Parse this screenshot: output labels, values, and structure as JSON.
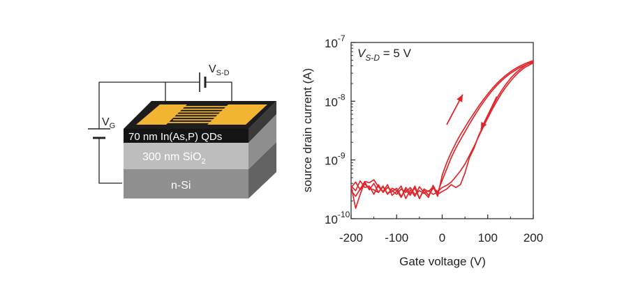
{
  "device": {
    "source_drain_label_main": "V",
    "source_drain_label_sub": "S-D",
    "gate_label_main": "V",
    "gate_label_sub": "G",
    "layer_top": "70 nm In(As,P) QDs",
    "layer_middle_main": "300 nm SiO",
    "layer_middle_sub": "2",
    "layer_bottom": "n-Si",
    "colors": {
      "gold": "#f2b533",
      "black": "#141414",
      "oxide": "#bdbdbd",
      "silicon": "#8f8f8f"
    }
  },
  "chart_data": {
    "type": "line",
    "title": "",
    "xlabel": "Gate voltage (V)",
    "ylabel": "source drain current (A)",
    "annotation_main": "V",
    "annotation_sub": "S-D",
    "annotation_rest": " = 5 V",
    "xlim": [
      -200,
      200
    ],
    "ylim": [
      1e-10,
      1e-07
    ],
    "yscale": "log",
    "grid": false,
    "x_ticks": [
      {
        "value": -200,
        "label": "-200"
      },
      {
        "value": -100,
        "label": "-100"
      },
      {
        "value": 0,
        "label": "0"
      },
      {
        "value": 100,
        "label": "100"
      },
      {
        "value": 200,
        "label": "200"
      }
    ],
    "y_ticks": [
      {
        "exp": -10,
        "base": "10",
        "power": "-10"
      },
      {
        "exp": -9,
        "base": "10",
        "power": "-9"
      },
      {
        "exp": -8,
        "base": "10",
        "power": "-8"
      },
      {
        "exp": -7,
        "base": "10",
        "power": "-7"
      }
    ],
    "line_color": "#e0262b",
    "series": [
      {
        "x": [
          -200,
          -190,
          -180,
          -170,
          -160,
          -150,
          -140,
          -130,
          -120,
          -110,
          -100,
          -90,
          -80,
          -70,
          -60,
          -50,
          -40,
          -30,
          -20,
          -10,
          0,
          10,
          20,
          30,
          40,
          50,
          60,
          70,
          80,
          90,
          100,
          110,
          120,
          130,
          140,
          150,
          160,
          170,
          180,
          190,
          200
        ],
        "y": [
          3.6e-10,
          3e-10,
          4.4e-10,
          3.4e-10,
          3.6e-10,
          2.6e-10,
          3.8e-10,
          2.8e-10,
          3.4e-10,
          3e-10,
          2.6e-10,
          3.2e-10,
          2.8e-10,
          3.4e-10,
          2.6e-10,
          3e-10,
          2.7e-10,
          3e-10,
          2.6e-10,
          2.8e-10,
          4.5e-10,
          7e-10,
          1.1e-09,
          1.6e-09,
          2.2e-09,
          3e-09,
          4.1e-09,
          5.5e-09,
          7.3e-09,
          9.5e-09,
          1.22e-08,
          1.52e-08,
          1.86e-08,
          2.22e-08,
          2.6e-08,
          2.98e-08,
          3.35e-08,
          3.72e-08,
          4.05e-08,
          4.35e-08,
          4.6e-08
        ]
      },
      {
        "x": [
          200,
          190,
          180,
          170,
          160,
          150,
          140,
          130,
          120,
          110,
          100,
          90,
          80,
          70,
          60,
          50,
          40,
          30,
          20,
          10,
          0,
          -10,
          -20,
          -30,
          -40,
          -50,
          -60,
          -70,
          -80,
          -90,
          -100,
          -110,
          -120,
          -130,
          -140,
          -150,
          -160,
          -170,
          -180,
          -190,
          -200
        ],
        "y": [
          4.5e-08,
          4.1e-08,
          3.7e-08,
          3.2e-08,
          2.7e-08,
          2.2e-08,
          1.75e-08,
          1.35e-08,
          1e-08,
          7.3e-09,
          5.2e-09,
          3.6e-09,
          2.5e-09,
          1.7e-09,
          1.2e-09,
          8.5e-10,
          6.5e-10,
          5.2e-10,
          4.2e-10,
          3.7e-10,
          3.4e-10,
          2.9e-10,
          3.3e-10,
          2.5e-10,
          3.1e-10,
          2.2e-10,
          3.3e-10,
          2.7e-10,
          3.4e-10,
          2.3e-10,
          3e-10,
          3.3e-10,
          2.6e-10,
          3.6e-10,
          2.8e-10,
          4e-10,
          3.1e-10,
          4.2e-10,
          2.6e-10,
          1.5e-10,
          3.6e-10
        ]
      },
      {
        "x": [
          -200,
          -190,
          -180,
          -170,
          -160,
          -150,
          -140,
          -130,
          -120,
          -110,
          -100,
          -90,
          -80,
          -70,
          -60,
          -50,
          -40,
          -30,
          -20,
          -10,
          0,
          10,
          20,
          30,
          40,
          50,
          60,
          70,
          80,
          90,
          100,
          110,
          120,
          130,
          140,
          150,
          160,
          170,
          180,
          190,
          200
        ],
        "y": [
          3.4e-10,
          4.2e-10,
          3.1e-10,
          3.9e-10,
          3.3e-10,
          3.1e-10,
          2.8e-10,
          3.5e-10,
          2.7e-10,
          2.9e-10,
          3.3e-10,
          2.4e-10,
          3.1e-10,
          2.5e-10,
          3.6e-10,
          2.2e-10,
          3.2e-10,
          2.9e-10,
          3.5e-10,
          2.4e-10,
          5.5e-10,
          9e-10,
          1.35e-09,
          1.95e-09,
          2.7e-09,
          3.6e-09,
          4.8e-09,
          6.3e-09,
          8.2e-09,
          1.05e-08,
          1.33e-08,
          1.65e-08,
          2e-08,
          2.38e-08,
          2.78e-08,
          3.18e-08,
          3.57e-08,
          3.95e-08,
          4.3e-08,
          4.62e-08,
          4.9e-08
        ]
      },
      {
        "x": [
          200,
          190,
          180,
          170,
          160,
          150,
          140,
          130,
          120,
          110,
          100,
          90,
          80,
          70,
          60,
          50,
          40,
          30,
          20,
          10,
          0,
          -10,
          -20,
          -30,
          -40,
          -50,
          -60,
          -70,
          -80,
          -90,
          -100,
          -110,
          -120,
          -130,
          -140,
          -150,
          -160,
          -170,
          -180,
          -190,
          -200
        ],
        "y": [
          4.8e-08,
          4.4e-08,
          3.95e-08,
          3.45e-08,
          2.95e-08,
          2.45e-08,
          1.95e-08,
          1.5e-08,
          1.12e-08,
          8e-09,
          5.6e-09,
          3.8e-09,
          2.6e-09,
          1.6e-09,
          1.1e-09,
          6e-10,
          3.8e-10,
          3.4e-10,
          3.8e-10,
          3.2e-10,
          2.9e-10,
          2.6e-10,
          3.7e-10,
          2.3e-10,
          2.8e-10,
          3.5e-10,
          2.4e-10,
          3.1e-10,
          2.2e-10,
          3.6e-10,
          2.9e-10,
          2.5e-10,
          3.8e-10,
          2.9e-10,
          3.5e-10,
          4.6e-10,
          4.1e-10,
          4.3e-10,
          3.2e-10,
          2.4e-10,
          3e-10
        ]
      }
    ],
    "arrows": [
      {
        "from": [
          10,
          4e-09
        ],
        "to": [
          45,
          1.3e-08
        ]
      },
      {
        "from": [
          120,
          1.2e-08
        ],
        "to": [
          85,
          3.3e-09
        ]
      }
    ]
  }
}
